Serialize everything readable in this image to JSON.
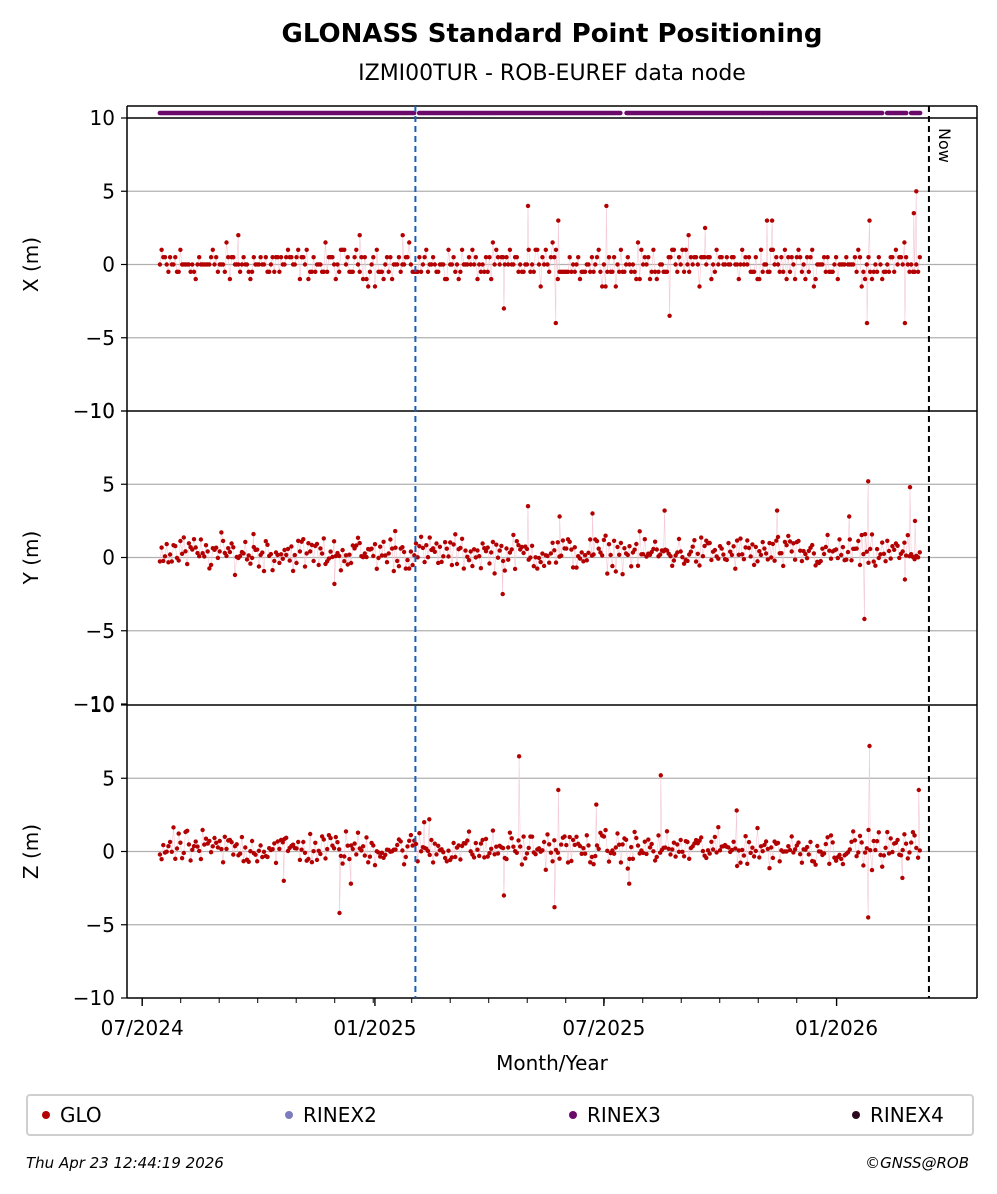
{
  "chart_data": {
    "type": "scatter",
    "title": "GLONASS Standard Point Positioning",
    "subtitle": "IZMI00TUR - ROB-EUREF data node",
    "xlabel": "Month/Year",
    "x_tick_labels": [
      "07/2024",
      "01/2025",
      "07/2025",
      "01/2026"
    ],
    "y_tick_labels": [
      "10",
      "5",
      "0",
      "−5",
      "−10"
    ],
    "ylim": [
      -10,
      10
    ],
    "x_start_day": 10,
    "x_end_day": 630,
    "x_range_days": [
      -12,
      660
    ],
    "x_tick_days": [
      0,
      184,
      365,
      549
    ],
    "data_start_day": 14,
    "data_end_day": 615,
    "event_line_day": 216,
    "now_day": 622,
    "now_label": "Now",
    "panels": [
      {
        "ylabel": "X (m)",
        "baseline": 0,
        "outliers": [
          [
            76,
            2
          ],
          [
            172,
            2
          ],
          [
            206,
            2
          ],
          [
            286,
            -3
          ],
          [
            305,
            4
          ],
          [
            327,
            -4
          ],
          [
            329,
            3
          ],
          [
            367,
            4
          ],
          [
            417,
            -3.5
          ],
          [
            432,
            2
          ],
          [
            445,
            2.5
          ],
          [
            494,
            3
          ],
          [
            498,
            3
          ],
          [
            573,
            -4
          ],
          [
            575,
            3
          ],
          [
            603,
            -4
          ],
          [
            610,
            3.5
          ],
          [
            612,
            5
          ]
        ]
      },
      {
        "ylabel": "Y (m)",
        "baseline": 0.3,
        "outliers": [
          [
            88,
            1.6
          ],
          [
            152,
            -1.8
          ],
          [
            200,
            1.8
          ],
          [
            285,
            -2.5
          ],
          [
            305,
            3.5
          ],
          [
            330,
            2.8
          ],
          [
            356,
            3
          ],
          [
            413,
            3.2
          ],
          [
            502,
            3.2
          ],
          [
            559,
            2.8
          ],
          [
            571,
            -4.2
          ],
          [
            574,
            5.2
          ],
          [
            603,
            -1.5
          ],
          [
            607,
            4.8
          ],
          [
            611,
            2.5
          ]
        ]
      },
      {
        "ylabel": "Z (m)",
        "baseline": 0.2,
        "outliers": [
          [
            112,
            -2
          ],
          [
            156,
            -4.2
          ],
          [
            165,
            -2.2
          ],
          [
            223,
            2
          ],
          [
            227,
            2.2
          ],
          [
            286,
            -3
          ],
          [
            298,
            6.5
          ],
          [
            326,
            -3.8
          ],
          [
            329,
            4.2
          ],
          [
            359,
            3.2
          ],
          [
            385,
            -2.2
          ],
          [
            410,
            5.2
          ],
          [
            470,
            2.8
          ],
          [
            575,
            7.2
          ],
          [
            574,
            -4.5
          ],
          [
            601,
            -1.8
          ],
          [
            614,
            4.2
          ]
        ]
      }
    ],
    "series": [
      {
        "name": "GLO",
        "color": "#b30000"
      },
      {
        "name": "RINEX2",
        "color": "#7b7bbd"
      },
      {
        "name": "RINEX3",
        "color": "#6b0a6b"
      },
      {
        "name": "RINEX4",
        "color": "#2b0a1f"
      }
    ],
    "rinex3_gaps": [
      [
        216,
        218
      ],
      [
        379,
        382
      ],
      [
        586,
        588
      ],
      [
        605,
        607
      ]
    ]
  },
  "footer": {
    "timestamp": "Thu Apr 23 12:44:19 2026",
    "copyright": "©GNSS@ROB"
  }
}
